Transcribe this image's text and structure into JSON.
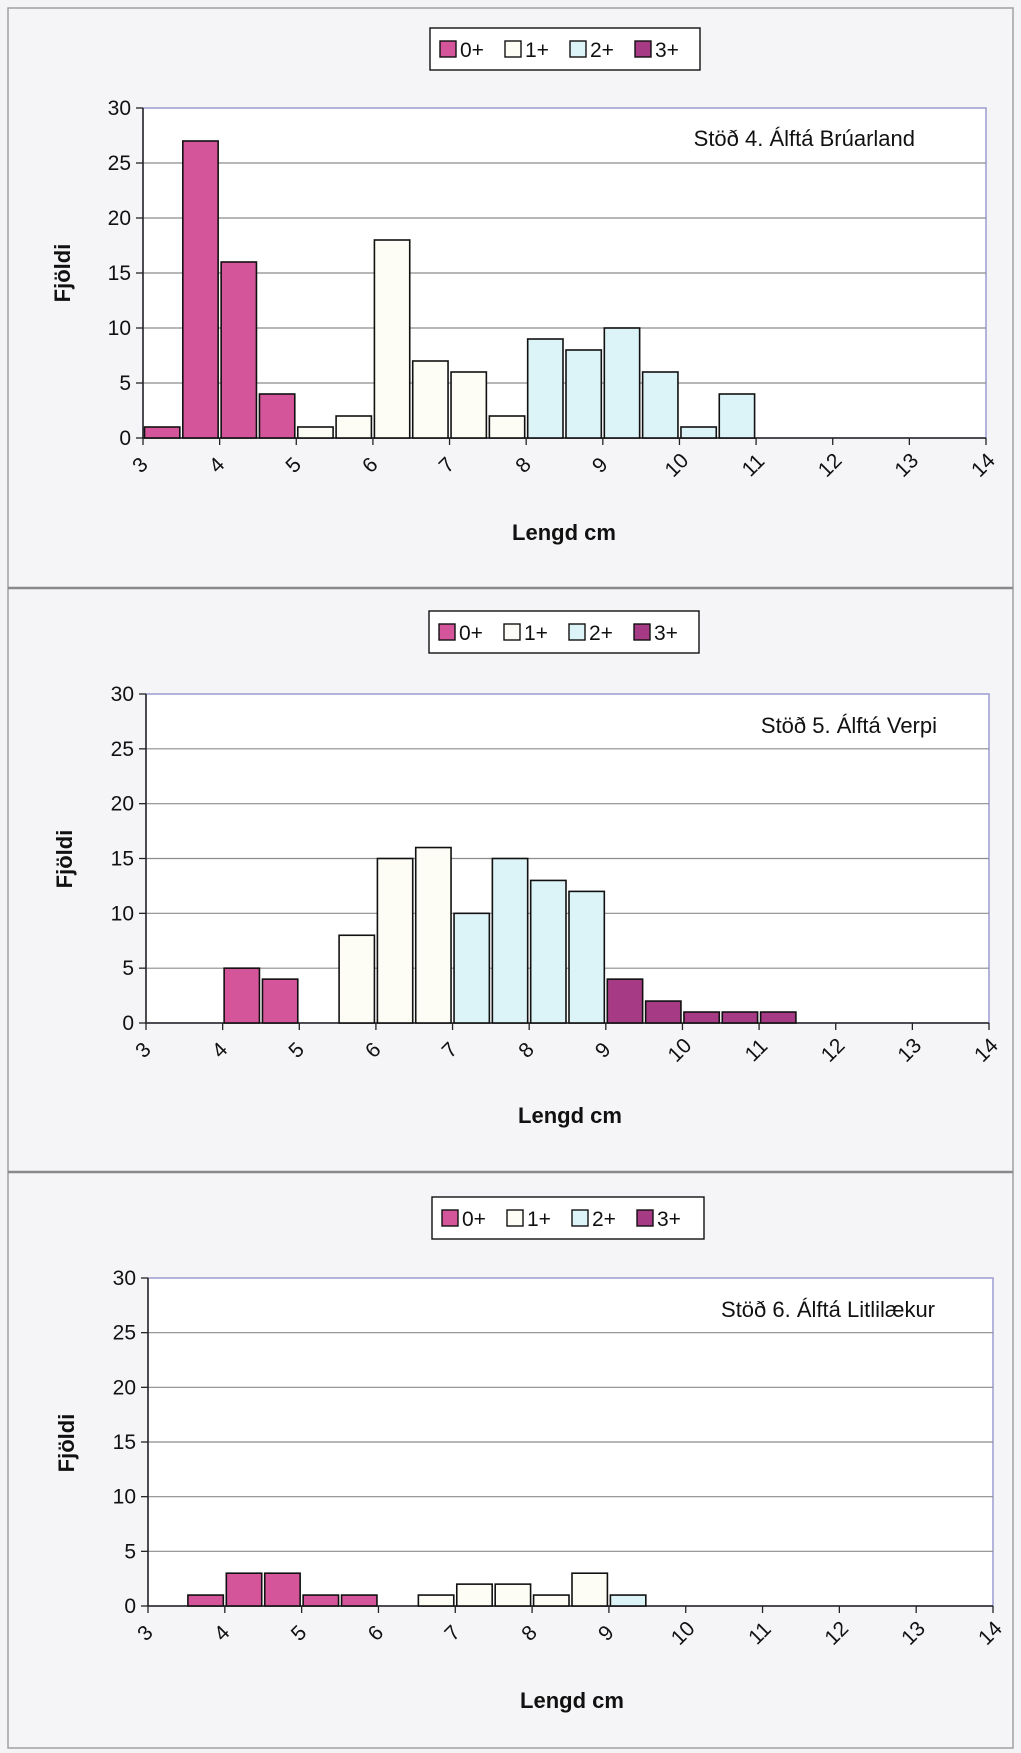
{
  "colors": {
    "0+": "#d4559a",
    "1+": "#fdfdf5",
    "2+": "#dcf3f8",
    "3+": "#a63a84",
    "gridline": "#8c8c8c",
    "plot_border": "#9b9bd0",
    "panel_divider": "#8a8a8a"
  },
  "chart_data": [
    {
      "type": "bar",
      "title": "Stöð 4.   Álftá Brúarland",
      "xlabel": "Lengd cm",
      "ylabel": "Fjöldi",
      "ylim": [
        0,
        30
      ],
      "yticks": [
        "0",
        "5",
        "10",
        "15",
        "20",
        "25",
        "30"
      ],
      "xlim": [
        3,
        14
      ],
      "xticks": [
        "3",
        "4",
        "5",
        "6",
        "7",
        "8",
        "9",
        "10",
        "11",
        "12",
        "13",
        "14"
      ],
      "grid": true,
      "legend_position": "top-center",
      "legend": [
        "0+",
        "1+",
        "2+",
        "3+"
      ],
      "bin_width": 0.5,
      "bars": [
        {
          "x": 3.25,
          "value": 1,
          "group": "0+"
        },
        {
          "x": 3.75,
          "value": 27,
          "group": "0+"
        },
        {
          "x": 4.25,
          "value": 16,
          "group": "0+"
        },
        {
          "x": 4.75,
          "value": 4,
          "group": "0+"
        },
        {
          "x": 5.25,
          "value": 1,
          "group": "1+"
        },
        {
          "x": 5.75,
          "value": 2,
          "group": "1+"
        },
        {
          "x": 6.25,
          "value": 18,
          "group": "1+"
        },
        {
          "x": 6.75,
          "value": 7,
          "group": "1+"
        },
        {
          "x": 7.25,
          "value": 6,
          "group": "1+"
        },
        {
          "x": 7.75,
          "value": 2,
          "group": "1+"
        },
        {
          "x": 8.25,
          "value": 9,
          "group": "2+"
        },
        {
          "x": 8.75,
          "value": 8,
          "group": "2+"
        },
        {
          "x": 9.25,
          "value": 10,
          "group": "2+"
        },
        {
          "x": 9.75,
          "value": 6,
          "group": "2+"
        },
        {
          "x": 10.25,
          "value": 1,
          "group": "2+"
        },
        {
          "x": 10.75,
          "value": 4,
          "group": "2+"
        }
      ]
    },
    {
      "type": "bar",
      "title": "Stöð 5.  Álftá Verpi",
      "xlabel": "Lengd cm",
      "ylabel": "Fjöldi",
      "ylim": [
        0,
        30
      ],
      "yticks": [
        "0",
        "5",
        "10",
        "15",
        "20",
        "25",
        "30"
      ],
      "xlim": [
        3,
        14
      ],
      "xticks": [
        "3",
        "4",
        "5",
        "6",
        "7",
        "8",
        "9",
        "10",
        "11",
        "12",
        "13",
        "14"
      ],
      "grid": true,
      "legend_position": "top-center",
      "legend": [
        "0+",
        "1+",
        "2+",
        "3+"
      ],
      "bin_width": 0.5,
      "bars": [
        {
          "x": 4.25,
          "value": 5,
          "group": "0+"
        },
        {
          "x": 4.75,
          "value": 4,
          "group": "0+"
        },
        {
          "x": 5.75,
          "value": 8,
          "group": "1+"
        },
        {
          "x": 6.25,
          "value": 15,
          "group": "1+"
        },
        {
          "x": 6.75,
          "value": 16,
          "group": "1+"
        },
        {
          "x": 7.25,
          "value": 10,
          "group": "2+"
        },
        {
          "x": 7.75,
          "value": 15,
          "group": "2+"
        },
        {
          "x": 8.25,
          "value": 13,
          "group": "2+"
        },
        {
          "x": 8.75,
          "value": 12,
          "group": "2+"
        },
        {
          "x": 9.25,
          "value": 4,
          "group": "3+"
        },
        {
          "x": 9.75,
          "value": 2,
          "group": "3+"
        },
        {
          "x": 10.25,
          "value": 1,
          "group": "3+"
        },
        {
          "x": 10.75,
          "value": 1,
          "group": "3+"
        },
        {
          "x": 11.25,
          "value": 1,
          "group": "3+"
        }
      ]
    },
    {
      "type": "bar",
      "title": "Stöð 6.  Álftá Litlilækur",
      "xlabel": "Lengd cm",
      "ylabel": "Fjöldi",
      "ylim": [
        0,
        30
      ],
      "yticks": [
        "0",
        "5",
        "10",
        "15",
        "20",
        "25",
        "30"
      ],
      "xlim": [
        3,
        14
      ],
      "xticks": [
        "3",
        "4",
        "5",
        "6",
        "7",
        "8",
        "9",
        "10",
        "11",
        "12",
        "13",
        "14"
      ],
      "grid": true,
      "legend_position": "top-center",
      "legend": [
        "0+",
        "1+",
        "2+",
        "3+"
      ],
      "bin_width": 0.5,
      "bars": [
        {
          "x": 3.75,
          "value": 1,
          "group": "0+"
        },
        {
          "x": 4.25,
          "value": 3,
          "group": "0+"
        },
        {
          "x": 4.75,
          "value": 3,
          "group": "0+"
        },
        {
          "x": 5.25,
          "value": 1,
          "group": "0+"
        },
        {
          "x": 5.75,
          "value": 1,
          "group": "0+"
        },
        {
          "x": 6.75,
          "value": 1,
          "group": "1+"
        },
        {
          "x": 7.25,
          "value": 2,
          "group": "1+"
        },
        {
          "x": 7.75,
          "value": 2,
          "group": "1+"
        },
        {
          "x": 8.25,
          "value": 1,
          "group": "1+"
        },
        {
          "x": 8.75,
          "value": 3,
          "group": "1+"
        },
        {
          "x": 9.25,
          "value": 1,
          "group": "2+"
        }
      ]
    }
  ]
}
